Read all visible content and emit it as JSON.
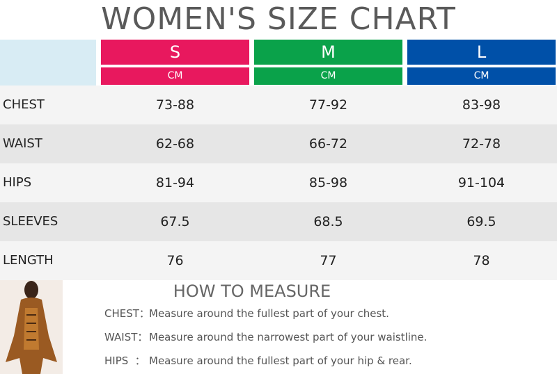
{
  "header": {
    "title": "WOMEN'S SIZE CHART"
  },
  "table": {
    "columns": [
      {
        "size": "S",
        "unit": "CM"
      },
      {
        "size": "M",
        "unit": "CM"
      },
      {
        "size": "L",
        "unit": "CM"
      }
    ],
    "rows": [
      [
        "CHEST",
        "73-88",
        "77-92",
        "83-98"
      ],
      [
        "WAIST",
        "62-68",
        "66-72",
        "72-78"
      ],
      [
        "HIPS",
        "81-94",
        "85-98",
        "91-104"
      ],
      [
        "SLEEVES",
        "67.5",
        "68.5",
        "69.5"
      ],
      [
        "LENGTH",
        "76",
        "77",
        "78"
      ]
    ]
  },
  "measure": {
    "title": "HOW TO MEASURE",
    "items": [
      {
        "label": "CHEST：",
        "text": "Measure around the fullest part of your chest."
      },
      {
        "label": "WAIST：",
        "text": "Measure around the narrowest part of your waistline."
      },
      {
        "label": "HIPS  ：",
        "text": "Measure around the fullest part of your hip & rear."
      }
    ]
  }
}
